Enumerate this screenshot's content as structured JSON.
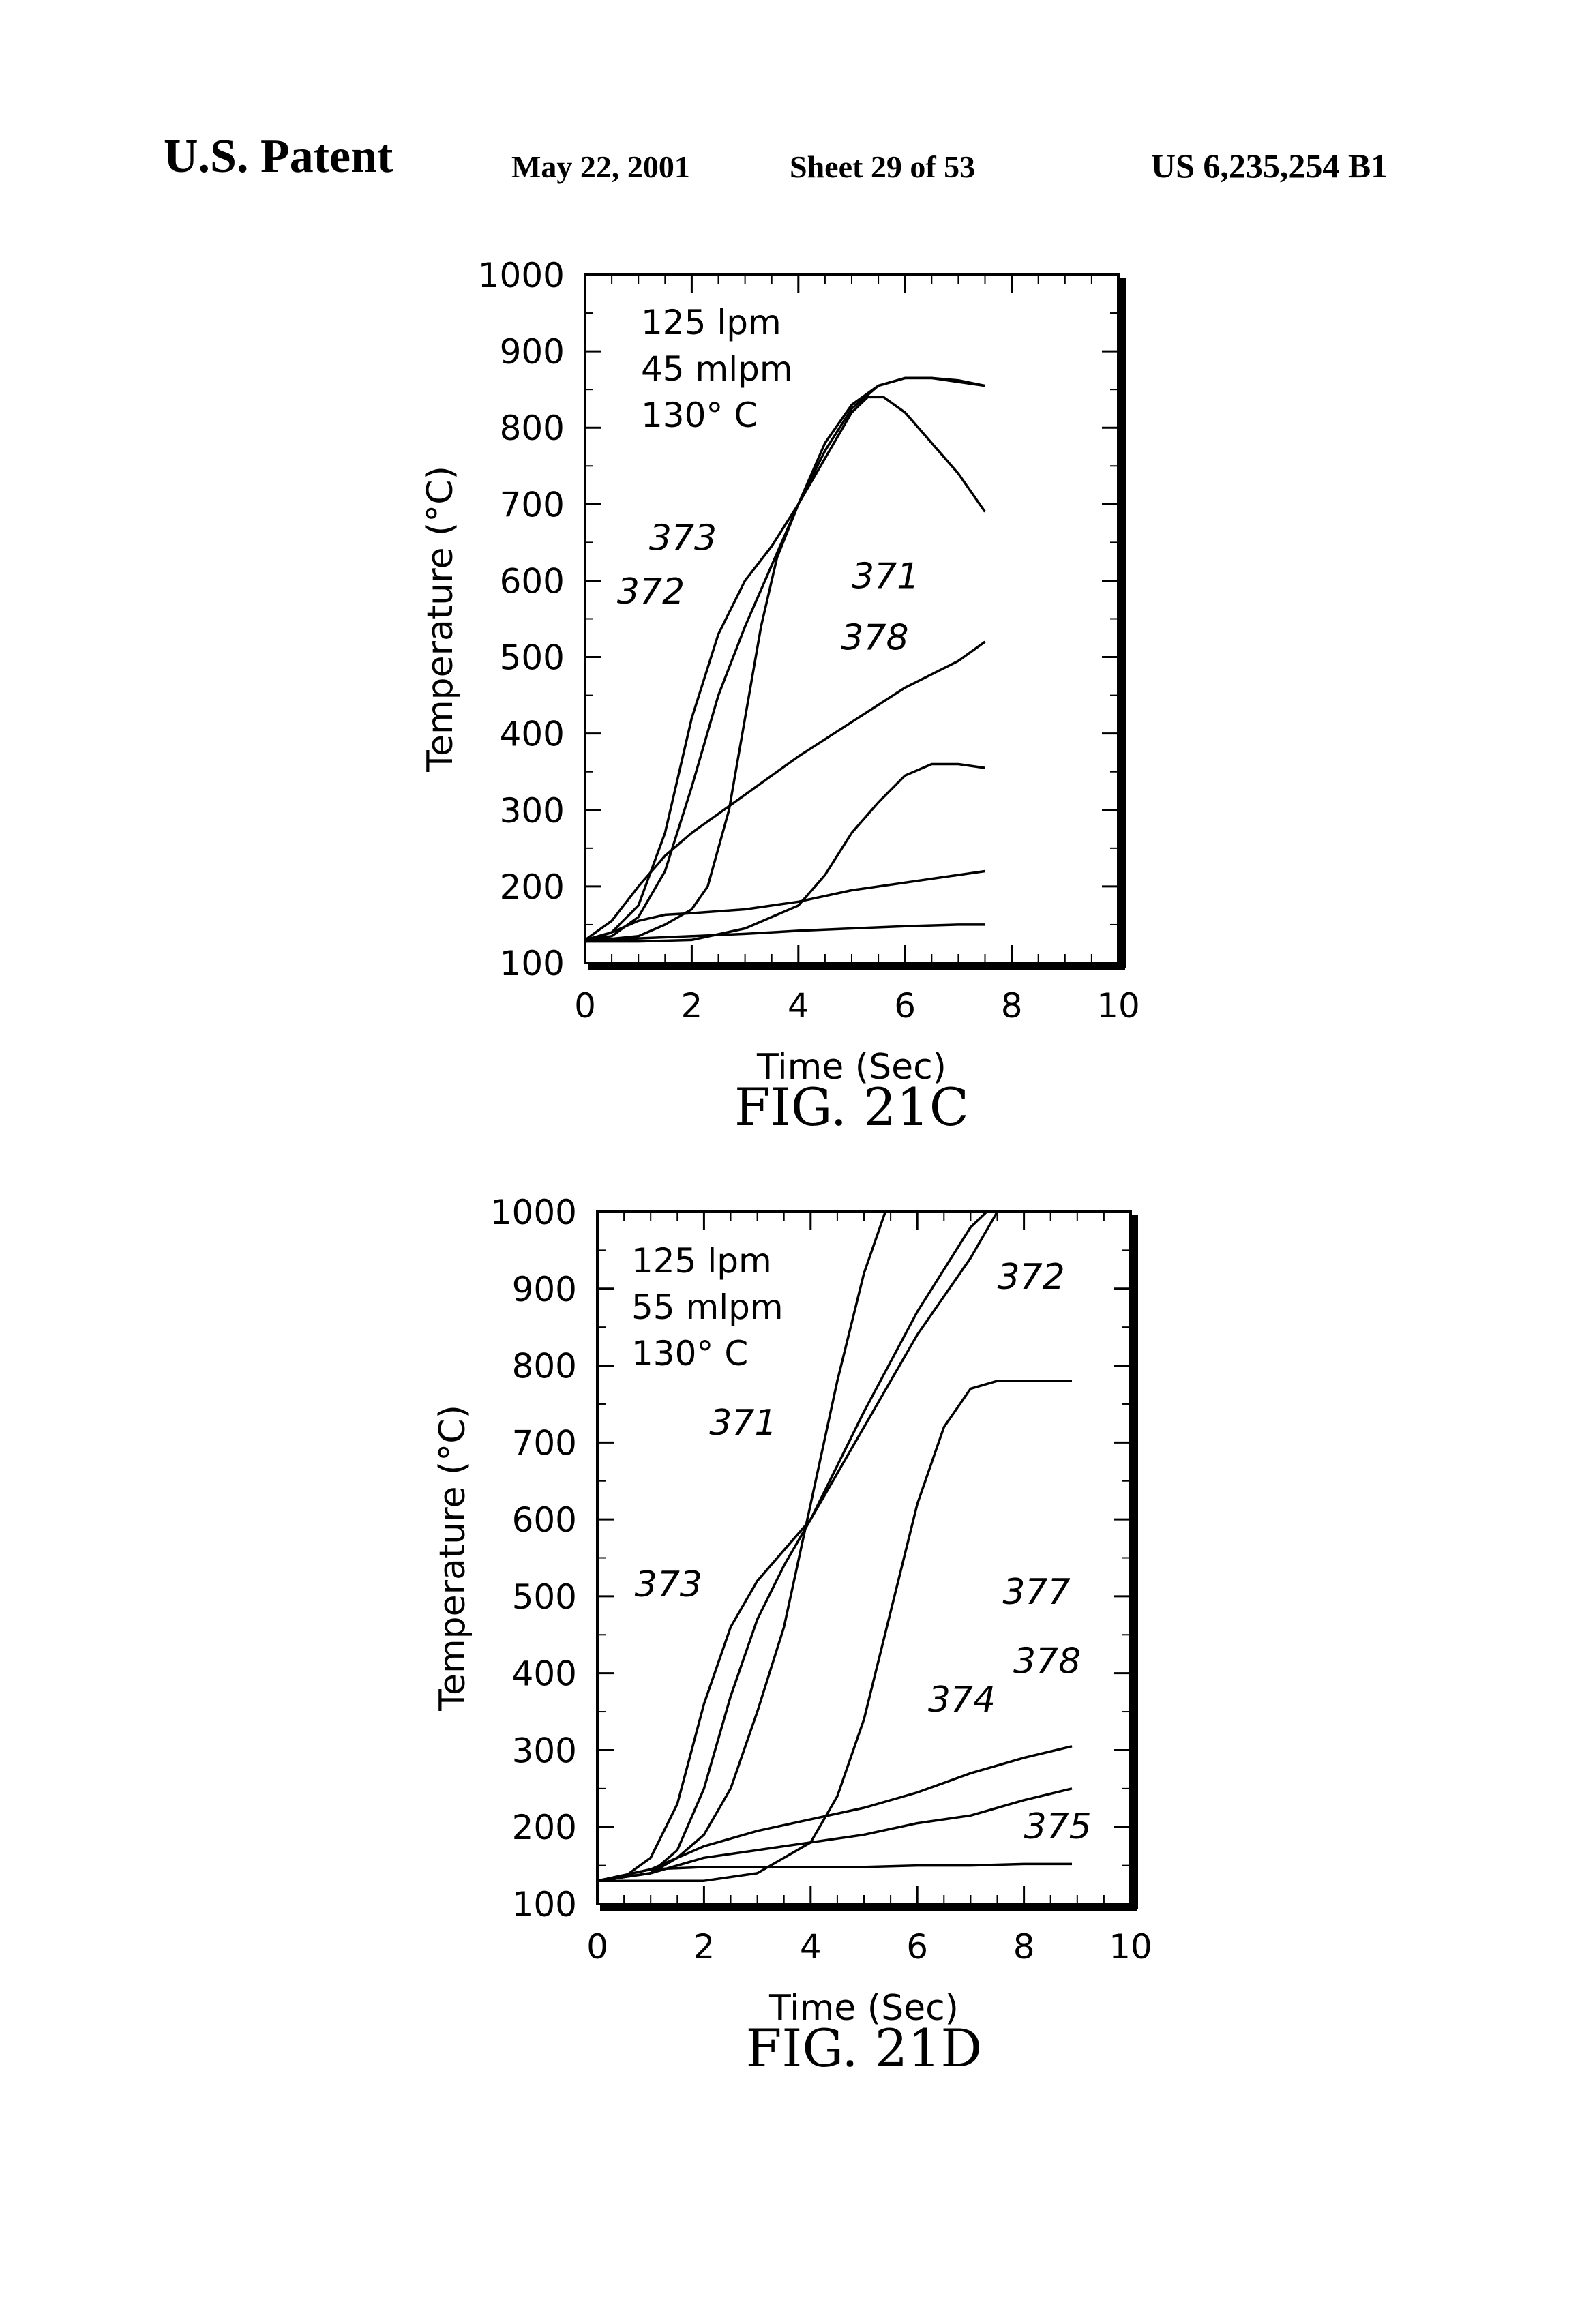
{
  "header": {
    "left": "U.S. Patent",
    "date": "May 22, 2001",
    "sheet": "Sheet 29 of 53",
    "patent_number": "US 6,235,254 B1"
  },
  "chart_data": [
    {
      "type": "line",
      "caption": "FIG. 21C",
      "xlabel": "Time (Sec)",
      "ylabel": "Temperature (°C)",
      "xlim": [
        0,
        10
      ],
      "ylim": [
        100,
        1000
      ],
      "xticks": [
        "0",
        "2",
        "4",
        "6",
        "8",
        "10"
      ],
      "yticks": [
        "100",
        "200",
        "300",
        "400",
        "500",
        "600",
        "700",
        "800",
        "900",
        "1000"
      ],
      "annotations": [
        "125 lpm",
        "45 mlpm",
        "130° C"
      ],
      "series": [
        {
          "name": "373",
          "points": [
            [
              0,
              130
            ],
            [
              0.5,
              140
            ],
            [
              1,
              175
            ],
            [
              1.5,
              270
            ],
            [
              2,
              420
            ],
            [
              2.5,
              530
            ],
            [
              3,
              600
            ],
            [
              3.5,
              645
            ],
            [
              4,
              700
            ],
            [
              4.5,
              760
            ],
            [
              5,
              820
            ],
            [
              5.3,
              840
            ],
            [
              5.6,
              840
            ],
            [
              6,
              820
            ],
            [
              6.5,
              780
            ],
            [
              7,
              740
            ],
            [
              7.5,
              690
            ]
          ]
        },
        {
          "name": "372",
          "points": [
            [
              0,
              130
            ],
            [
              0.5,
              135
            ],
            [
              1,
              160
            ],
            [
              1.5,
              220
            ],
            [
              2,
              330
            ],
            [
              2.5,
              450
            ],
            [
              3,
              540
            ],
            [
              3.5,
              620
            ],
            [
              4,
              700
            ],
            [
              4.5,
              780
            ],
            [
              5,
              830
            ],
            [
              5.5,
              855
            ],
            [
              6,
              865
            ],
            [
              6.5,
              865
            ],
            [
              7,
              860
            ],
            [
              7.5,
              855
            ]
          ]
        },
        {
          "name": "371",
          "points": [
            [
              0,
              128
            ],
            [
              1,
              135
            ],
            [
              1.5,
              150
            ],
            [
              2,
              170
            ],
            [
              2.3,
              200
            ],
            [
              2.7,
              300
            ],
            [
              3,
              420
            ],
            [
              3.3,
              540
            ],
            [
              3.6,
              630
            ],
            [
              4,
              700
            ],
            [
              4.5,
              770
            ],
            [
              5,
              825
            ],
            [
              5.5,
              855
            ],
            [
              6,
              865
            ],
            [
              6.5,
              865
            ],
            [
              7,
              862
            ],
            [
              7.5,
              855
            ]
          ]
        },
        {
          "name": "378",
          "points": [
            [
              0,
              130
            ],
            [
              0.5,
              155
            ],
            [
              1,
              200
            ],
            [
              1.5,
              240
            ],
            [
              2,
              270
            ],
            [
              2.5,
              295
            ],
            [
              3,
              320
            ],
            [
              4,
              370
            ],
            [
              5,
              415
            ],
            [
              6,
              460
            ],
            [
              7,
              495
            ],
            [
              7.5,
              520
            ]
          ]
        },
        {
          "name": "",
          "points": [
            [
              0,
              128
            ],
            [
              1,
              128
            ],
            [
              2,
              130
            ],
            [
              3,
              145
            ],
            [
              4,
              175
            ],
            [
              4.5,
              215
            ],
            [
              5,
              270
            ],
            [
              5.5,
              310
            ],
            [
              6,
              345
            ],
            [
              6.5,
              360
            ],
            [
              7,
              360
            ],
            [
              7.5,
              355
            ]
          ]
        },
        {
          "name": "",
          "points": [
            [
              0,
              128
            ],
            [
              0.5,
              140
            ],
            [
              1,
              155
            ],
            [
              1.5,
              163
            ],
            [
              2,
              165
            ],
            [
              3,
              170
            ],
            [
              4,
              180
            ],
            [
              5,
              195
            ],
            [
              6,
              205
            ],
            [
              7,
              215
            ],
            [
              7.5,
              220
            ]
          ]
        },
        {
          "name": "",
          "points": [
            [
              0,
              128
            ],
            [
              1,
              132
            ],
            [
              2,
              135
            ],
            [
              3,
              138
            ],
            [
              4,
              142
            ],
            [
              5,
              145
            ],
            [
              6,
              148
            ],
            [
              7,
              150
            ],
            [
              7.5,
              150
            ]
          ]
        }
      ],
      "label_positions": [
        {
          "text": "373",
          "x": 1.2,
          "y": 640
        },
        {
          "text": "372",
          "x": 0.6,
          "y": 570
        },
        {
          "text": "371",
          "x": 5.0,
          "y": 590
        },
        {
          "text": "378",
          "x": 4.8,
          "y": 510
        }
      ]
    },
    {
      "type": "line",
      "caption": "FIG. 21D",
      "xlabel": "Time (Sec)",
      "ylabel": "Temperature (°C)",
      "xlim": [
        0,
        10
      ],
      "ylim": [
        100,
        1000
      ],
      "xticks": [
        "0",
        "2",
        "4",
        "6",
        "8",
        "10"
      ],
      "yticks": [
        "100",
        "200",
        "300",
        "400",
        "500",
        "600",
        "700",
        "800",
        "900",
        "1000"
      ],
      "annotations": [
        "125 lpm",
        "55 mlpm",
        "130° C"
      ],
      "series": [
        {
          "name": "371",
          "points": [
            [
              0,
              130
            ],
            [
              1,
              140
            ],
            [
              1.5,
              160
            ],
            [
              2,
              190
            ],
            [
              2.5,
              250
            ],
            [
              3,
              350
            ],
            [
              3.5,
              460
            ],
            [
              4,
              620
            ],
            [
              4.5,
              780
            ],
            [
              5,
              920
            ],
            [
              5.4,
              1000
            ]
          ]
        },
        {
          "name": "372",
          "points": [
            [
              0,
              130
            ],
            [
              1,
              140
            ],
            [
              1.5,
              170
            ],
            [
              2,
              250
            ],
            [
              2.5,
              370
            ],
            [
              3,
              470
            ],
            [
              3.5,
              540
            ],
            [
              4,
              600
            ],
            [
              5,
              720
            ],
            [
              6,
              840
            ],
            [
              7,
              940
            ],
            [
              7.5,
              1000
            ]
          ]
        },
        {
          "name": "373",
          "points": [
            [
              0,
              130
            ],
            [
              0.5,
              135
            ],
            [
              1,
              160
            ],
            [
              1.5,
              230
            ],
            [
              2,
              360
            ],
            [
              2.5,
              460
            ],
            [
              3,
              520
            ],
            [
              3.5,
              560
            ],
            [
              4,
              600
            ],
            [
              5,
              740
            ],
            [
              6,
              870
            ],
            [
              7,
              980
            ],
            [
              7.3,
              1000
            ]
          ]
        },
        {
          "name": "377",
          "points": [
            [
              0,
              130
            ],
            [
              1,
              130
            ],
            [
              2,
              130
            ],
            [
              3,
              140
            ],
            [
              4,
              180
            ],
            [
              4.5,
              240
            ],
            [
              5,
              340
            ],
            [
              5.5,
              480
            ],
            [
              6,
              620
            ],
            [
              6.5,
              720
            ],
            [
              7,
              770
            ],
            [
              7.5,
              780
            ],
            [
              8,
              780
            ],
            [
              8.9,
              780
            ]
          ]
        },
        {
          "name": "374",
          "points": [
            [
              0,
              130
            ],
            [
              1,
              145
            ],
            [
              2,
              175
            ],
            [
              3,
              195
            ],
            [
              4,
              210
            ],
            [
              5,
              225
            ],
            [
              6,
              245
            ],
            [
              7,
              270
            ],
            [
              8,
              290
            ],
            [
              8.9,
              305
            ]
          ]
        },
        {
          "name": "378",
          "points": [
            [
              0,
              130
            ],
            [
              1,
              140
            ],
            [
              2,
              160
            ],
            [
              3,
              170
            ],
            [
              4,
              180
            ],
            [
              5,
              190
            ],
            [
              6,
              205
            ],
            [
              7,
              215
            ],
            [
              8,
              235
            ],
            [
              8.9,
              250
            ]
          ]
        },
        {
          "name": "375",
          "points": [
            [
              0,
              130
            ],
            [
              1,
              145
            ],
            [
              2,
              148
            ],
            [
              3,
              148
            ],
            [
              4,
              148
            ],
            [
              5,
              148
            ],
            [
              6,
              150
            ],
            [
              7,
              150
            ],
            [
              8,
              152
            ],
            [
              8.9,
              152
            ]
          ]
        }
      ],
      "label_positions": [
        {
          "text": "372",
          "x": 7.5,
          "y": 900
        },
        {
          "text": "371",
          "x": 2.1,
          "y": 710
        },
        {
          "text": "373",
          "x": 0.7,
          "y": 500
        },
        {
          "text": "377",
          "x": 7.6,
          "y": 490
        },
        {
          "text": "378",
          "x": 7.8,
          "y": 400
        },
        {
          "text": "374",
          "x": 6.2,
          "y": 350
        },
        {
          "text": "375",
          "x": 8.0,
          "y": 185
        }
      ]
    }
  ]
}
